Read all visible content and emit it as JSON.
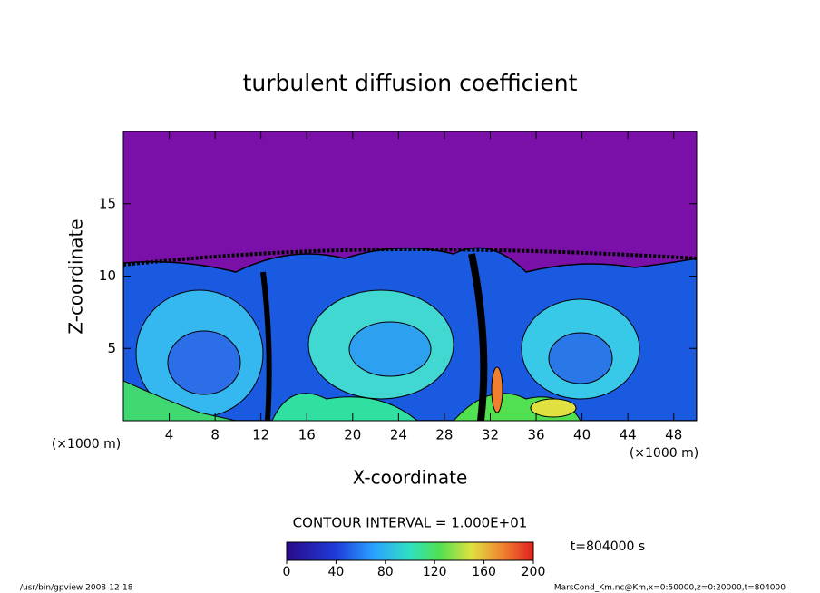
{
  "chart_data": {
    "type": "contour",
    "title": "turbulent diffusion coefficient",
    "xlabel": "X-coordinate",
    "ylabel": "Z-coordinate",
    "x_unit": "(×1000 m)",
    "y_unit": "(×1000 m)",
    "xlim": [
      0,
      50
    ],
    "xticks": [
      4,
      8,
      12,
      16,
      20,
      24,
      28,
      32,
      36,
      40,
      44,
      48
    ],
    "ylim": [
      0,
      20
    ],
    "yticks": [
      5,
      10,
      15
    ],
    "contour_interval": "CONTOUR INTERVAL = 1.000E+01",
    "colorbar": {
      "lim": [
        0,
        200
      ],
      "ticks": [
        0,
        40,
        80,
        120,
        160,
        200
      ]
    },
    "time": "t=804000 s"
  },
  "footer": {
    "left": "/usr/bin/gpview  2008-12-18",
    "right": "MarsCond_Km.nc@Km,x=0:50000,z=0:20000,t=804000"
  }
}
